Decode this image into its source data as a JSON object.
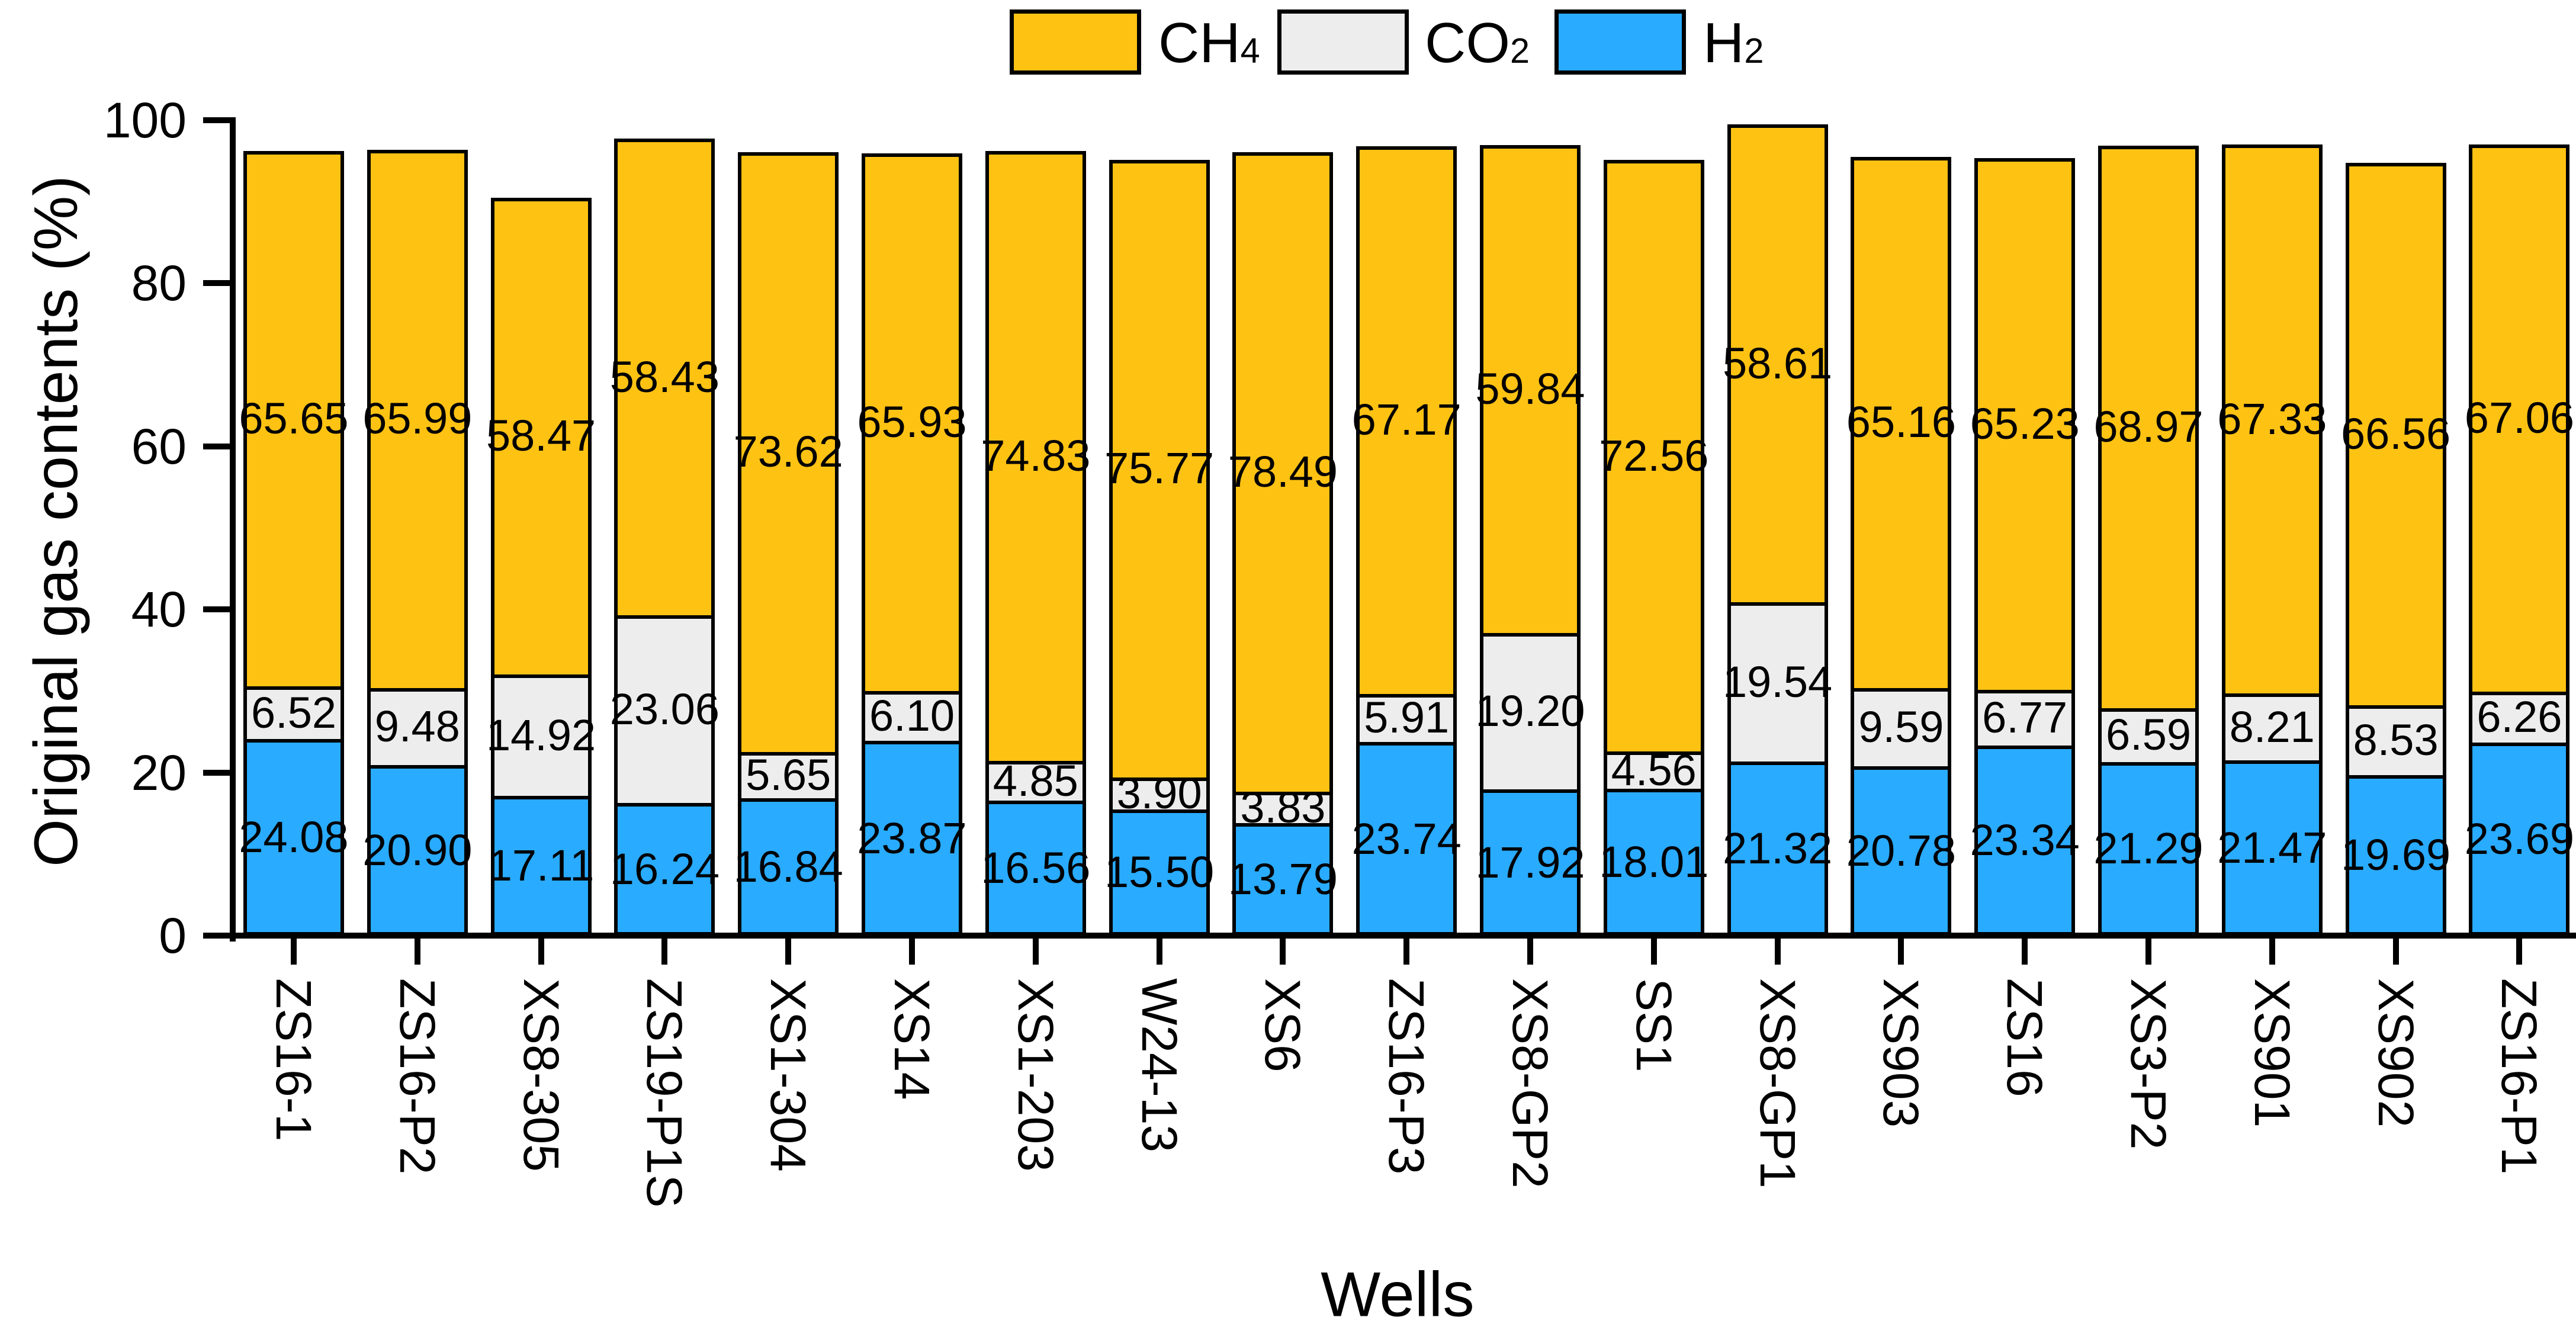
{
  "chart_data": {
    "type": "bar",
    "stacked": true,
    "title": "",
    "xlabel": "Wells",
    "ylabel": "Original gas contents (%)",
    "ylim": [
      0,
      100
    ],
    "yticks": [
      "0",
      "20",
      "40",
      "60",
      "80",
      "100"
    ],
    "grid": false,
    "legend_position": "top",
    "bar_outline_color": "#000000",
    "categories": [
      "ZS16-1",
      "ZS16-P2",
      "XS8-305",
      "ZS19-P1S",
      "XS1-304",
      "XS14",
      "XS1-203",
      "W24-13",
      "XS6",
      "ZS16-P3",
      "XS8-GP2",
      "SS1",
      "XS8-GP1",
      "XS903",
      "ZS16",
      "XS3-P2",
      "XS901",
      "XS902",
      "ZS16-P1"
    ],
    "stack_order_bottom_to_top": [
      "H2",
      "CO2",
      "CH4"
    ],
    "series": [
      {
        "name": "H2",
        "label_main": "H",
        "label_sub": "2",
        "color": "#29ABFF",
        "values": [
          "24.08",
          "20.90",
          "17.11",
          "16.24",
          "16.84",
          "23.87",
          "16.56",
          "15.50",
          "13.79",
          "23.74",
          "17.92",
          "18.01",
          "21.32",
          "20.78",
          "23.34",
          "21.29",
          "21.47",
          "19.69",
          "23.69"
        ]
      },
      {
        "name": "CO2",
        "label_main": "CO",
        "label_sub": "2",
        "color": "#EDEDED",
        "values": [
          "6.52",
          "9.48",
          "14.92",
          "23.06",
          "5.65",
          "6.10",
          "4.85",
          "3.90",
          "3.83",
          "5.91",
          "19.20",
          "4.56",
          "19.54",
          "9.59",
          "6.77",
          "6.59",
          "8.21",
          "8.53",
          "6.26"
        ]
      },
      {
        "name": "CH4",
        "label_main": "CH",
        "label_sub": "4",
        "color": "#FEC213",
        "values": [
          "65.65",
          "65.99",
          "58.47",
          "58.43",
          "73.62",
          "65.93",
          "74.83",
          "75.77",
          "78.49",
          "67.17",
          "59.84",
          "72.56",
          "58.61",
          "65.16",
          "65.23",
          "68.97",
          "67.33",
          "66.56",
          "67.06"
        ]
      }
    ]
  }
}
